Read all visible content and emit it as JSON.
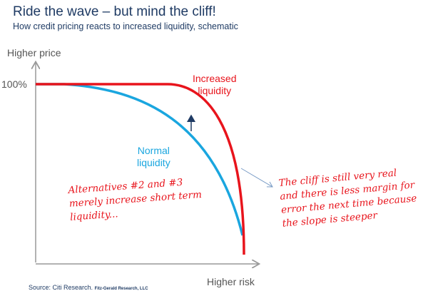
{
  "title": "Ride the wave – but mind the cliff!",
  "subtitle": "How credit pricing reacts to increased liquidity, schematic",
  "y_axis_label": "Higher price",
  "x_axis_label": "Higher risk",
  "y_tick": "100%",
  "curves": {
    "increased": {
      "label_line1": "Increased",
      "label_line2": "liquidity",
      "color": "#e8141c"
    },
    "normal": {
      "label_line1": "Normal",
      "label_line2": "liquidity",
      "color": "#1aa6df"
    }
  },
  "annotations": {
    "left": [
      "Alternatives #2 and #3",
      "merely increase short term",
      "liquidity..."
    ],
    "right": [
      "The cliff is still very real",
      "and there is less margin for",
      "error the next time because",
      "the slope is steeper"
    ]
  },
  "source": {
    "main": "Source: Citi Research.",
    "small": "Fitz-Gerald Research, LLC"
  }
}
